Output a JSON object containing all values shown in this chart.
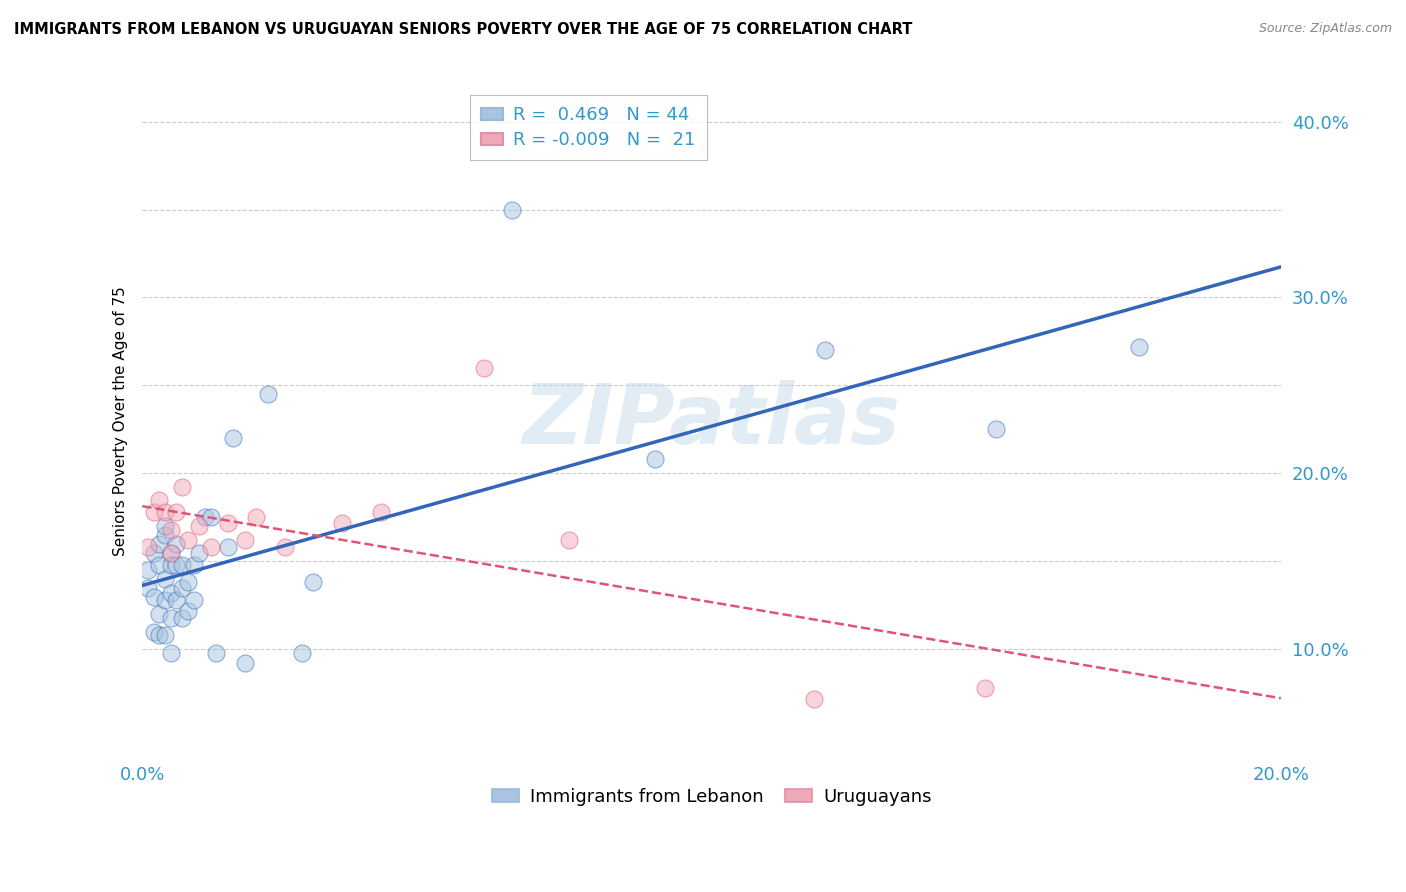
{
  "title": "IMMIGRANTS FROM LEBANON VS URUGUAYAN SENIORS POVERTY OVER THE AGE OF 75 CORRELATION CHART",
  "source": "Source: ZipAtlas.com",
  "ylabel": "Seniors Poverty Over the Age of 75",
  "xlim": [
    0.0,
    0.2
  ],
  "ylim": [
    0.04,
    0.42
  ],
  "r_blue": 0.469,
  "n_blue": 44,
  "r_pink": -0.009,
  "n_pink": 21,
  "blue_color": "#a8c4e0",
  "pink_color": "#f0a8b8",
  "blue_line_color": "#3366bb",
  "pink_line_color": "#e05575",
  "watermark_color": "#b8d0e8",
  "blue_scatter_x": [
    0.001,
    0.001,
    0.002,
    0.002,
    0.002,
    0.003,
    0.003,
    0.003,
    0.003,
    0.004,
    0.004,
    0.004,
    0.004,
    0.004,
    0.005,
    0.005,
    0.005,
    0.005,
    0.005,
    0.006,
    0.006,
    0.006,
    0.007,
    0.007,
    0.007,
    0.008,
    0.008,
    0.009,
    0.009,
    0.01,
    0.011,
    0.012,
    0.013,
    0.015,
    0.016,
    0.018,
    0.022,
    0.028,
    0.03,
    0.065,
    0.09,
    0.12,
    0.15,
    0.175
  ],
  "blue_scatter_y": [
    0.145,
    0.135,
    0.155,
    0.13,
    0.11,
    0.16,
    0.148,
    0.12,
    0.108,
    0.165,
    0.17,
    0.14,
    0.128,
    0.108,
    0.155,
    0.148,
    0.132,
    0.118,
    0.098,
    0.16,
    0.148,
    0.128,
    0.148,
    0.135,
    0.118,
    0.138,
    0.122,
    0.148,
    0.128,
    0.155,
    0.175,
    0.175,
    0.098,
    0.158,
    0.22,
    0.092,
    0.245,
    0.098,
    0.138,
    0.35,
    0.208,
    0.27,
    0.225,
    0.272
  ],
  "pink_scatter_x": [
    0.001,
    0.002,
    0.003,
    0.004,
    0.005,
    0.005,
    0.006,
    0.007,
    0.008,
    0.01,
    0.012,
    0.015,
    0.018,
    0.02,
    0.025,
    0.035,
    0.042,
    0.06,
    0.075,
    0.118,
    0.148
  ],
  "pink_scatter_y": [
    0.158,
    0.178,
    0.185,
    0.178,
    0.168,
    0.155,
    0.178,
    0.192,
    0.162,
    0.17,
    0.158,
    0.172,
    0.162,
    0.175,
    0.158,
    0.172,
    0.178,
    0.26,
    0.162,
    0.072,
    0.078
  ]
}
